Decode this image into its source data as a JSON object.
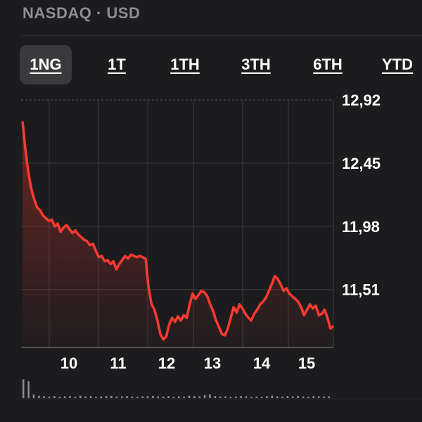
{
  "header": {
    "title": "NASDAQ · USD"
  },
  "tabs": [
    {
      "label": "1NG",
      "active": true
    },
    {
      "label": "1T",
      "active": false
    },
    {
      "label": "1TH",
      "active": false
    },
    {
      "label": "3TH",
      "active": false
    },
    {
      "label": "6TH",
      "active": false
    },
    {
      "label": "YTD",
      "active": false
    }
  ],
  "colors": {
    "line": "#ff3b30",
    "grid": "#3a3a3c",
    "text": "#ffffff",
    "muted": "#8e8e93"
  },
  "chart_data": {
    "type": "area",
    "y_ticks": [
      "12,92",
      "12,45",
      "11,98",
      "11,51"
    ],
    "y_tick_values": [
      12.92,
      12.45,
      11.98,
      11.51
    ],
    "x_ticks": [
      "10",
      "11",
      "12",
      "13",
      "14",
      "15"
    ],
    "ylim": [
      11.08,
      12.92
    ],
    "series": [
      {
        "values": [
          12.76,
          12.55,
          12.38,
          12.26,
          12.18,
          12.12,
          12.1,
          12.06,
          12.04,
          12.02,
          12.03,
          11.98,
          12.0,
          11.94,
          11.97,
          11.99,
          11.96,
          11.93,
          11.95,
          11.92,
          11.9,
          11.88,
          11.87,
          11.84,
          11.85,
          11.8,
          11.75,
          11.76,
          11.72,
          11.73,
          11.7,
          11.72,
          11.66,
          11.7,
          11.73,
          11.76,
          11.74,
          11.77,
          11.76,
          11.75,
          11.76,
          11.75,
          11.74,
          11.52,
          11.4,
          11.36,
          11.28,
          11.18,
          11.14,
          11.16,
          11.25,
          11.3,
          11.27,
          11.31,
          11.28,
          11.32,
          11.3,
          11.4,
          11.48,
          11.44,
          11.47,
          11.5,
          11.49,
          11.46,
          11.4,
          11.35,
          11.28,
          11.23,
          11.18,
          11.17,
          11.22,
          11.3,
          11.38,
          11.34,
          11.4,
          11.37,
          11.33,
          11.3,
          11.28,
          11.33,
          11.36,
          11.4,
          11.42,
          11.45,
          11.5,
          11.55,
          11.61,
          11.59,
          11.55,
          11.5,
          11.52,
          11.48,
          11.46,
          11.44,
          11.42,
          11.38,
          11.32,
          11.36,
          11.4,
          11.37,
          11.39,
          11.32,
          11.33,
          11.36,
          11.3,
          11.22,
          11.24
        ]
      }
    ],
    "volume": [
      0.95,
      0.85,
      0.18,
      0.12,
      0.1,
      0.08,
      0.1,
      0.07,
      0.09,
      0.1,
      0.06,
      0.12,
      0.08,
      0.1,
      0.07,
      0.09,
      0.1,
      0.11,
      0.08,
      0.09,
      0.1,
      0.08,
      0.07,
      0.09,
      0.1,
      0.11,
      0.09,
      0.08,
      0.1,
      0.07,
      0.09,
      0.08,
      0.12,
      0.1,
      0.09,
      0.15,
      0.2,
      0.1,
      0.08,
      0.09,
      0.07,
      0.08,
      0.1,
      0.09,
      0.06,
      0.08,
      0.07,
      0.1,
      0.12,
      0.09,
      0.08,
      0.1,
      0.09,
      0.11,
      0.08,
      0.07,
      0.1,
      0.09,
      0.08,
      0.09
    ]
  }
}
